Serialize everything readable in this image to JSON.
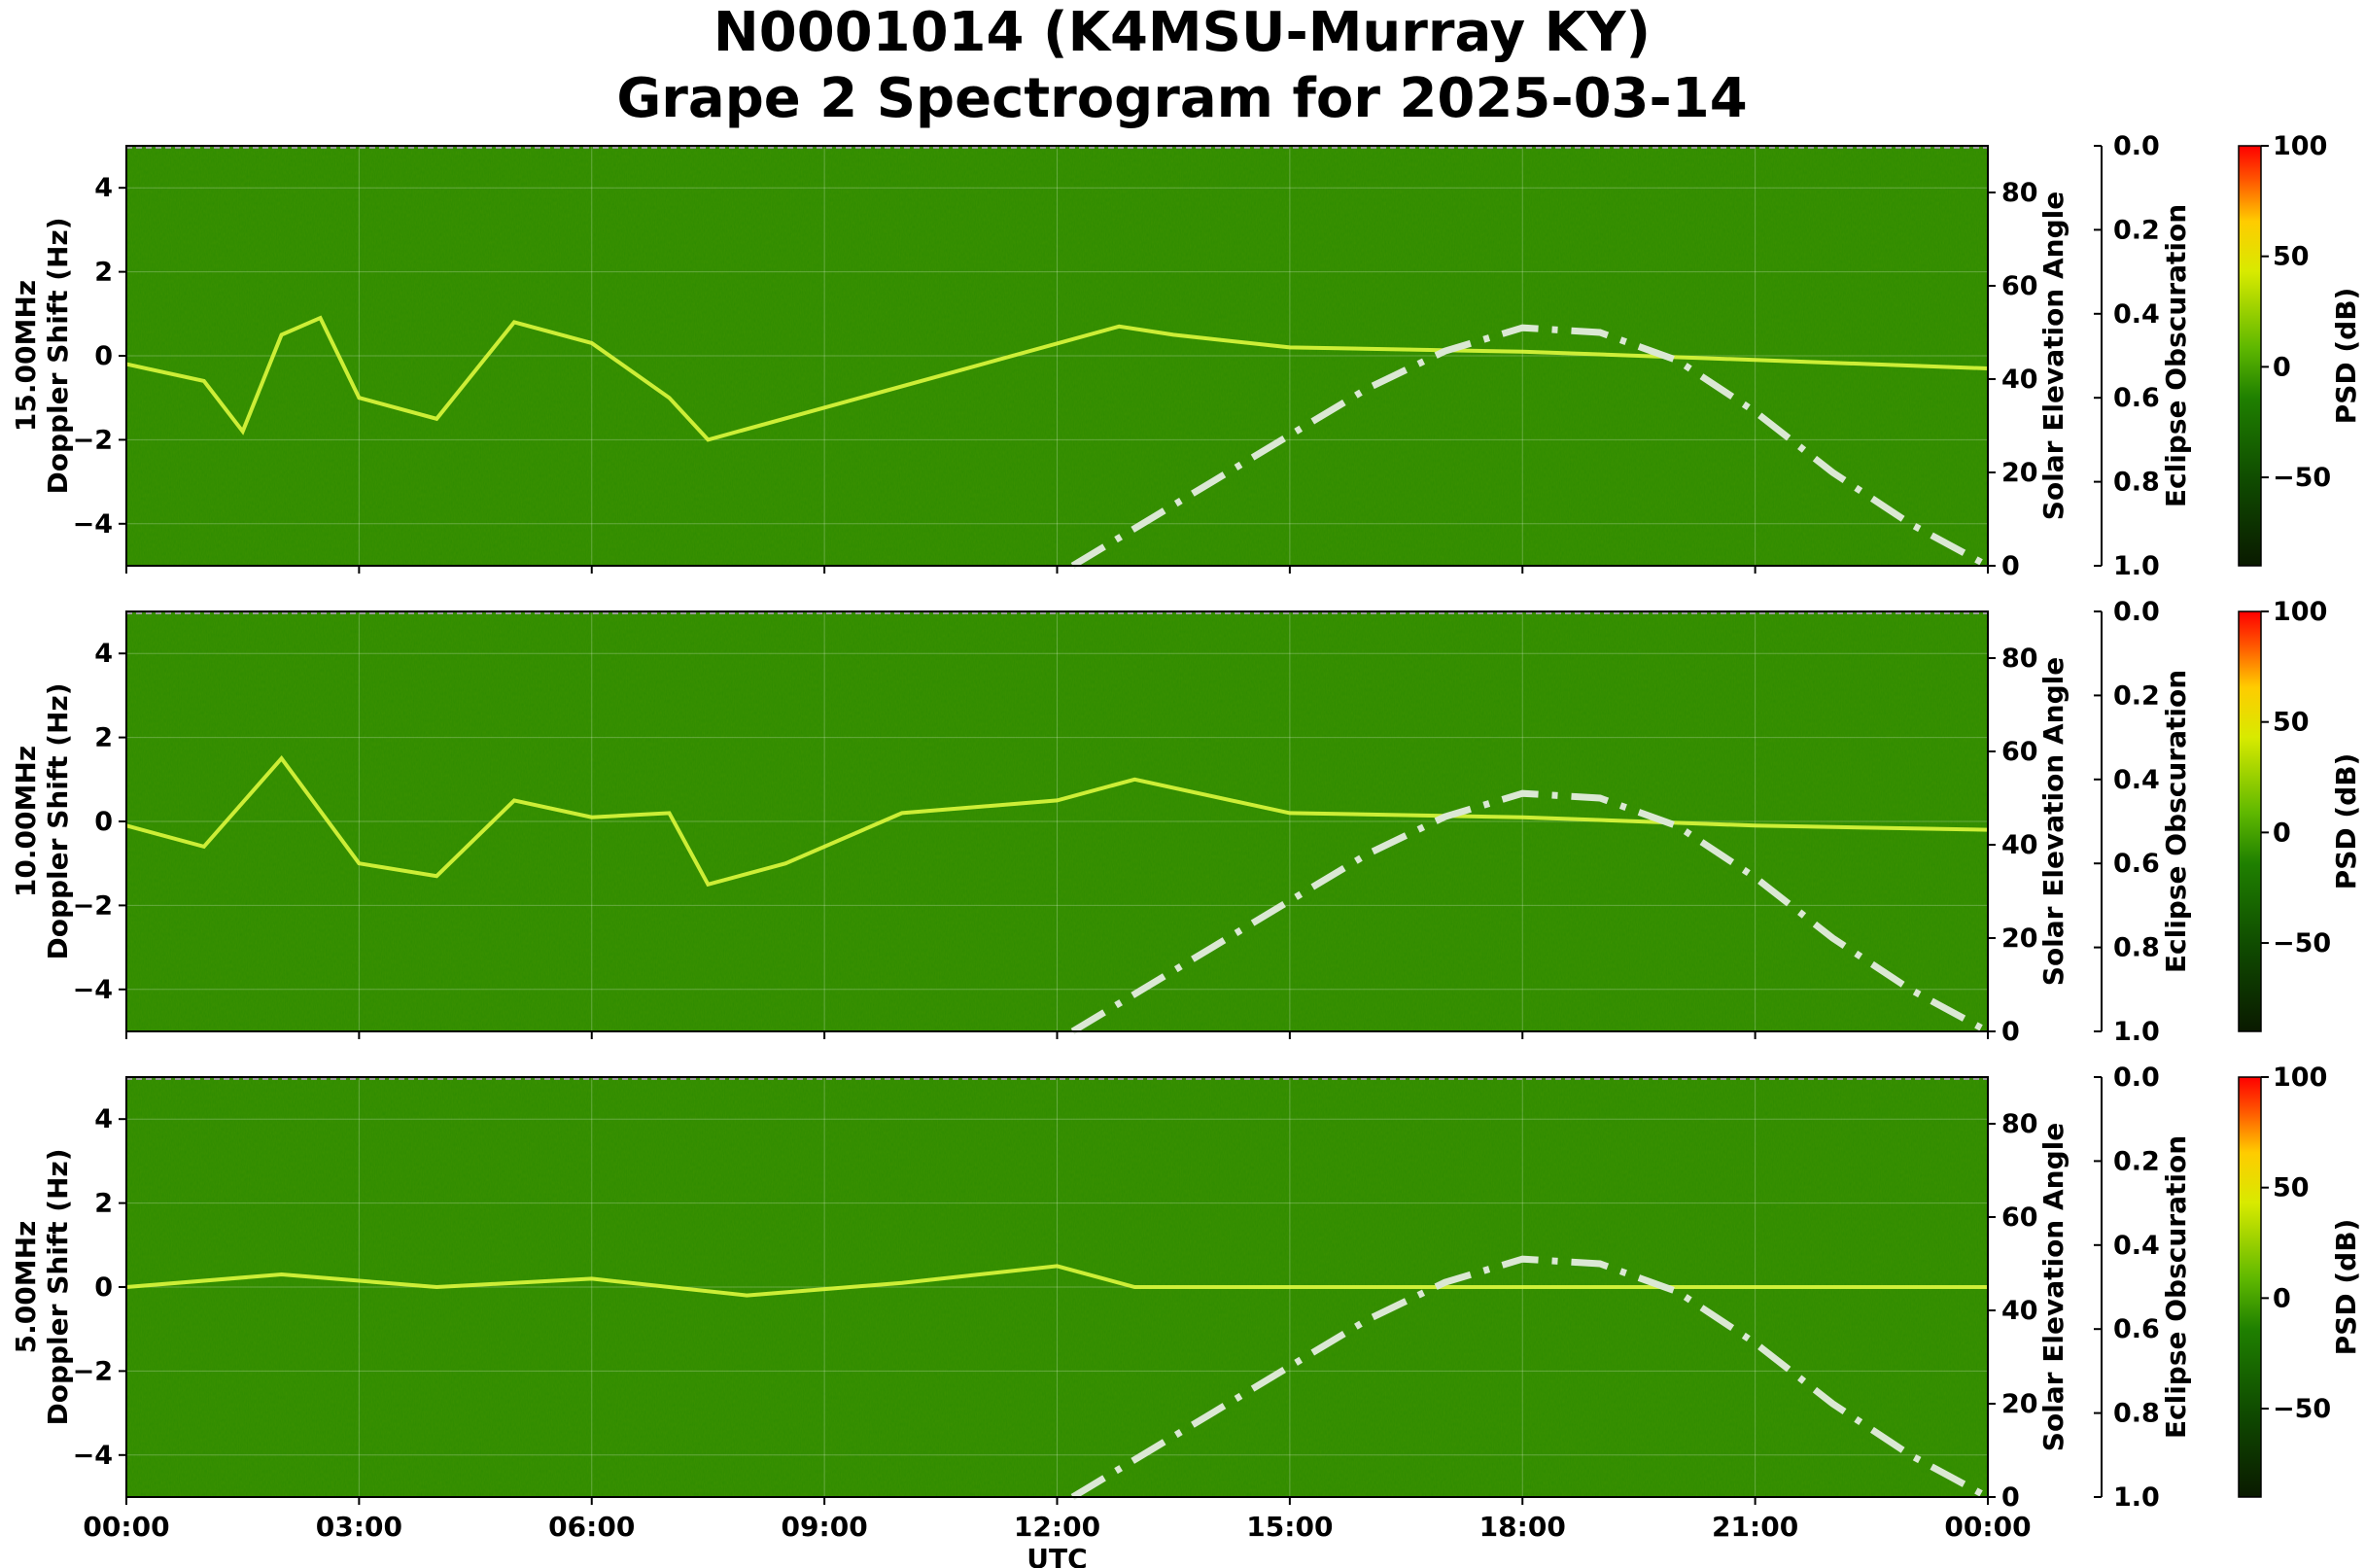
{
  "title_line1": "N0001014 (K4MSU-Murray KY)",
  "title_line2": "Grape 2 Spectrogram for 2025-03-14",
  "colors": {
    "spectrogram_base": "#2e8b00",
    "sun_curve": "#dbe8d4",
    "colorbar_stops": [
      "#0a1a00",
      "#0f4a00",
      "#1f8000",
      "#5fb800",
      "#d8ea00",
      "#ffcc00",
      "#ff5500",
      "#ff0000"
    ]
  },
  "chart_data": [
    {
      "type": "heatmap",
      "frequency_label": "15.00MHz",
      "ylabel": "15.00MHz\nDoppler Shift (Hz)",
      "xlabel": "",
      "ylim": [
        -5,
        5
      ],
      "yticks": [
        "4",
        "2",
        "0",
        "−2",
        "−4"
      ],
      "right_axis_label": "Solar Elevation Angle",
      "right_ylim": [
        0,
        90
      ],
      "right_ticks": [
        "80",
        "60",
        "40",
        "20",
        "0"
      ],
      "eclipse_label": "Eclipse Obscuration",
      "eclipse_ticks": [
        "0.0",
        "0.2",
        "0.4",
        "0.6",
        "0.8",
        "1.0"
      ],
      "colorbar_label": "PSD (dB)",
      "colorbar_ticks": [
        "100",
        "50",
        "0",
        "−50"
      ],
      "colorbar_range": [
        -90,
        100
      ],
      "doppler_trace": [
        [
          0,
          -0.2
        ],
        [
          1,
          -0.6
        ],
        [
          1.5,
          -1.8
        ],
        [
          2,
          0.5
        ],
        [
          2.5,
          0.9
        ],
        [
          3,
          -1.0
        ],
        [
          4,
          -1.5
        ],
        [
          5,
          0.8
        ],
        [
          6,
          0.3
        ],
        [
          7,
          -1.0
        ],
        [
          7.5,
          -2.0
        ],
        [
          12.8,
          0.7
        ],
        [
          13.5,
          0.5
        ],
        [
          15,
          0.2
        ],
        [
          18,
          0.1
        ],
        [
          21,
          -0.1
        ],
        [
          24,
          -0.3
        ]
      ],
      "solar_elevation": [
        [
          12.2,
          0
        ],
        [
          13,
          8
        ],
        [
          14,
          18
        ],
        [
          15,
          28
        ],
        [
          16,
          38
        ],
        [
          17,
          46
        ],
        [
          18,
          51
        ],
        [
          19,
          50
        ],
        [
          20,
          44
        ],
        [
          21,
          33
        ],
        [
          22,
          20
        ],
        [
          23,
          9
        ],
        [
          24,
          0
        ]
      ]
    },
    {
      "type": "heatmap",
      "frequency_label": "10.00MHz",
      "ylabel": "10.00MHz\nDoppler Shift (Hz)",
      "xlabel": "",
      "ylim": [
        -5,
        5
      ],
      "yticks": [
        "4",
        "2",
        "0",
        "−2",
        "−4"
      ],
      "right_axis_label": "Solar Elevation Angle",
      "right_ylim": [
        0,
        90
      ],
      "right_ticks": [
        "80",
        "60",
        "40",
        "20",
        "0"
      ],
      "eclipse_label": "Eclipse Obscuration",
      "eclipse_ticks": [
        "0.0",
        "0.2",
        "0.4",
        "0.6",
        "0.8",
        "1.0"
      ],
      "colorbar_label": "PSD (dB)",
      "colorbar_ticks": [
        "100",
        "50",
        "0",
        "−50"
      ],
      "colorbar_range": [
        -90,
        100
      ],
      "doppler_trace": [
        [
          0,
          -0.1
        ],
        [
          1,
          -0.6
        ],
        [
          2,
          1.5
        ],
        [
          3,
          -1.0
        ],
        [
          4,
          -1.3
        ],
        [
          5,
          0.5
        ],
        [
          6,
          0.1
        ],
        [
          7,
          0.2
        ],
        [
          7.5,
          -1.5
        ],
        [
          8.5,
          -1.0
        ],
        [
          10,
          0.2
        ],
        [
          12,
          0.5
        ],
        [
          13,
          1.0
        ],
        [
          15,
          0.2
        ],
        [
          18,
          0.1
        ],
        [
          21,
          -0.1
        ],
        [
          24,
          -0.2
        ]
      ],
      "solar_elevation": [
        [
          12.2,
          0
        ],
        [
          13,
          8
        ],
        [
          14,
          18
        ],
        [
          15,
          28
        ],
        [
          16,
          38
        ],
        [
          17,
          46
        ],
        [
          18,
          51
        ],
        [
          19,
          50
        ],
        [
          20,
          44
        ],
        [
          21,
          33
        ],
        [
          22,
          20
        ],
        [
          23,
          9
        ],
        [
          24,
          0
        ]
      ]
    },
    {
      "type": "heatmap",
      "frequency_label": "5.00MHz",
      "ylabel": "5.00MHz\nDoppler Shift (Hz)",
      "xlabel": "UTC",
      "ylim": [
        -5,
        5
      ],
      "yticks": [
        "4",
        "2",
        "0",
        "−2",
        "−4"
      ],
      "xticks": [
        "00:00",
        "03:00",
        "06:00",
        "09:00",
        "12:00",
        "15:00",
        "18:00",
        "21:00",
        "00:00"
      ],
      "right_axis_label": "Solar Elevation Angle",
      "right_ylim": [
        0,
        90
      ],
      "right_ticks": [
        "80",
        "60",
        "40",
        "20",
        "0"
      ],
      "eclipse_label": "Eclipse Obscuration",
      "eclipse_ticks": [
        "0.0",
        "0.2",
        "0.4",
        "0.6",
        "0.8",
        "1.0"
      ],
      "colorbar_label": "PSD (dB)",
      "colorbar_ticks": [
        "100",
        "50",
        "0",
        "−50"
      ],
      "colorbar_range": [
        -90,
        100
      ],
      "doppler_trace": [
        [
          0,
          0
        ],
        [
          2,
          0.3
        ],
        [
          4,
          0
        ],
        [
          6,
          0.2
        ],
        [
          8,
          -0.2
        ],
        [
          10,
          0.1
        ],
        [
          12,
          0.5
        ],
        [
          13,
          0
        ],
        [
          24,
          0
        ]
      ],
      "solar_elevation": [
        [
          12.2,
          0
        ],
        [
          13,
          8
        ],
        [
          14,
          18
        ],
        [
          15,
          28
        ],
        [
          16,
          38
        ],
        [
          17,
          46
        ],
        [
          18,
          51
        ],
        [
          19,
          50
        ],
        [
          20,
          44
        ],
        [
          21,
          33
        ],
        [
          22,
          20
        ],
        [
          23,
          9
        ],
        [
          24,
          0
        ]
      ]
    }
  ]
}
